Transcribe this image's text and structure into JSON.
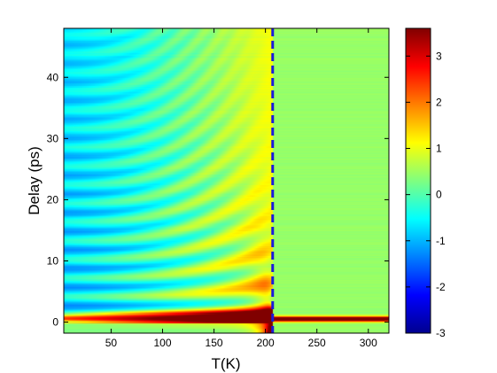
{
  "chart_data": {
    "type": "heatmap",
    "title": "",
    "xlabel": "T(K)",
    "ylabel": "Delay (ps)",
    "xlim": [
      4,
      320
    ],
    "ylim": [
      -1.8,
      48
    ],
    "x_ticks": [
      50,
      100,
      150,
      200,
      250,
      300
    ],
    "y_ticks": [
      0,
      10,
      20,
      30,
      40
    ],
    "colorbar": {
      "colormap": "jet",
      "clim": [
        -3,
        3.6
      ],
      "ticks": [
        -3,
        -2,
        -1,
        0,
        1,
        2,
        3
      ]
    },
    "annotations": [
      {
        "type": "vertical-dashed-line",
        "x": 207,
        "color": "#1a1adb"
      }
    ],
    "grid": false,
    "legend": "none"
  }
}
